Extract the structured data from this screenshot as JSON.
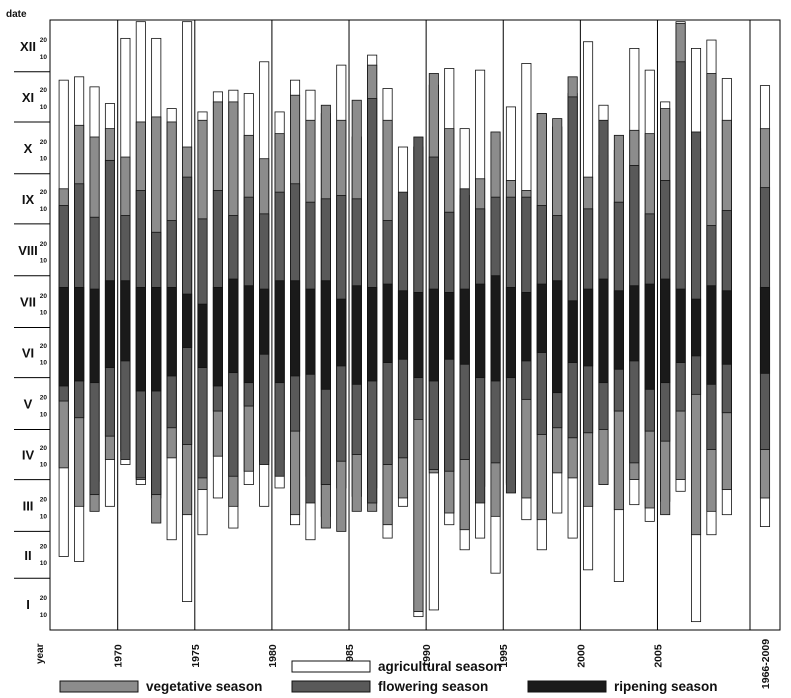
{
  "chart_data": {
    "type": "bar",
    "orientation": "vertical-range",
    "y_axis_title": "date",
    "x_axis_title": "year",
    "y_months": [
      "I",
      "II",
      "III",
      "IV",
      "V",
      "VI",
      "VII",
      "VIII",
      "IX",
      "X",
      "XI",
      "XII"
    ],
    "y_day_ticks": [
      "10",
      "20"
    ],
    "x_tick_labels": [
      {
        "label": "1970",
        "year": 1970
      },
      {
        "label": "1975",
        "year": 1975
      },
      {
        "label": "1980",
        "year": 1980
      },
      {
        "label": "1985",
        "year": 1985
      },
      {
        "label": "1990",
        "year": 1990
      },
      {
        "label": "1995",
        "year": 1995
      },
      {
        "label": "2000",
        "year": 2000
      },
      {
        "label": "2005",
        "year": 2005
      }
    ],
    "summary_label": "1966-2009",
    "range_units": "day of year",
    "season_order": [
      "agricultural",
      "vegetative",
      "flowering",
      "ripening"
    ],
    "legend": [
      {
        "key": "agricultural",
        "label": "agricultural season",
        "color": "#ffffff"
      },
      {
        "key": "vegetative",
        "label": "vegetative season",
        "color": "#8c8c8c"
      },
      {
        "key": "flowering",
        "label": "flowering season",
        "color": "#595959"
      },
      {
        "key": "ripening",
        "label": "ripening season",
        "color": "#1a1a1a"
      }
    ],
    "years": [
      1966,
      1967,
      1968,
      1969,
      1970,
      1971,
      1972,
      1973,
      1974,
      1975,
      1976,
      1977,
      1978,
      1979,
      1980,
      1981,
      1982,
      1983,
      1984,
      1985,
      1986,
      1987,
      1988,
      1989,
      1990,
      1991,
      1992,
      1993,
      1994,
      1995,
      1996,
      1997,
      1998,
      1999,
      2000,
      2001,
      2002,
      2003,
      2004,
      2005,
      2006,
      2007,
      2008,
      2009
    ],
    "series": [
      {
        "key": "agricultural",
        "ranges": [
          [
            45,
            330
          ],
          [
            42,
            332
          ],
          [
            90,
            326
          ],
          [
            75,
            316
          ],
          [
            100,
            355
          ],
          [
            88,
            365
          ],
          [
            80,
            355
          ],
          [
            55,
            313
          ],
          [
            18,
            365
          ],
          [
            58,
            311
          ],
          [
            80,
            323
          ],
          [
            62,
            324
          ],
          [
            88,
            322
          ],
          [
            75,
            341
          ],
          [
            86,
            311
          ],
          [
            64,
            330
          ],
          [
            55,
            324
          ],
          [
            69,
            310
          ],
          [
            86,
            339
          ],
          [
            81,
            296
          ],
          [
            86,
            345
          ],
          [
            56,
            325
          ],
          [
            75,
            290
          ],
          [
            9,
            290
          ],
          [
            13,
            327
          ],
          [
            64,
            337
          ],
          [
            49,
            301
          ],
          [
            56,
            336
          ],
          [
            35,
            293
          ],
          [
            89,
            314
          ],
          [
            67,
            340
          ],
          [
            49,
            310
          ],
          [
            71,
            302
          ],
          [
            56,
            322
          ],
          [
            37,
            353
          ],
          [
            90,
            315
          ],
          [
            30,
            288
          ],
          [
            76,
            349
          ],
          [
            66,
            336
          ],
          [
            78,
            317
          ],
          [
            84,
            365
          ],
          [
            6,
            349
          ],
          [
            58,
            354
          ],
          [
            70,
            331
          ]
        ]
      },
      {
        "key": "vegetative",
        "ranges": [
          [
            98,
            265
          ],
          [
            75,
            303
          ],
          [
            72,
            296
          ],
          [
            103,
            301
          ],
          [
            108,
            284
          ],
          [
            91,
            305
          ],
          [
            65,
            308
          ],
          [
            104,
            305
          ],
          [
            70,
            290
          ],
          [
            85,
            306
          ],
          [
            105,
            317
          ],
          [
            75,
            317
          ],
          [
            96,
            297
          ],
          [
            102,
            283
          ],
          [
            103,
            298
          ],
          [
            70,
            321
          ],
          [
            93,
            306
          ],
          [
            62,
            315
          ],
          [
            60,
            306
          ],
          [
            72,
            318
          ],
          [
            72,
            339
          ],
          [
            64,
            306
          ],
          [
            80,
            260
          ],
          [
            12,
            290
          ],
          [
            95,
            334
          ],
          [
            71,
            301
          ],
          [
            61,
            261
          ],
          [
            87,
            271
          ],
          [
            69,
            299
          ],
          [
            88,
            270
          ],
          [
            80,
            264
          ],
          [
            67,
            310
          ],
          [
            95,
            307
          ],
          [
            92,
            332
          ],
          [
            75,
            272
          ],
          [
            88,
            285
          ],
          [
            73,
            297
          ],
          [
            91,
            300
          ],
          [
            74,
            298
          ],
          [
            70,
            313
          ],
          [
            91,
            364
          ],
          [
            58,
            289
          ],
          [
            72,
            334
          ],
          [
            85,
            306
          ]
        ]
      },
      {
        "key": "flowering",
        "ranges": [
          [
            138,
            255
          ],
          [
            128,
            268
          ],
          [
            82,
            248
          ],
          [
            117,
            282
          ],
          [
            103,
            249
          ],
          [
            92,
            264
          ],
          [
            82,
            239
          ],
          [
            122,
            246
          ],
          [
            112,
            272
          ],
          [
            92,
            247
          ],
          [
            132,
            264
          ],
          [
            93,
            249
          ],
          [
            135,
            260
          ],
          [
            100,
            250
          ],
          [
            93,
            263
          ],
          [
            120,
            268
          ],
          [
            77,
            257
          ],
          [
            88,
            259
          ],
          [
            102,
            261
          ],
          [
            106,
            259
          ],
          [
            77,
            319
          ],
          [
            100,
            246
          ],
          [
            104,
            263
          ],
          [
            127,
            296
          ],
          [
            97,
            284
          ],
          [
            96,
            251
          ],
          [
            103,
            265
          ],
          [
            77,
            253
          ],
          [
            101,
            260
          ],
          [
            83,
            260
          ],
          [
            139,
            260
          ],
          [
            118,
            255
          ],
          [
            122,
            249
          ],
          [
            116,
            320
          ],
          [
            119,
            253
          ],
          [
            121,
            306
          ],
          [
            132,
            257
          ],
          [
            101,
            279
          ],
          [
            120,
            250
          ],
          [
            114,
            270
          ],
          [
            132,
            341
          ],
          [
            142,
            299
          ],
          [
            109,
            243
          ],
          [
            131,
            252
          ]
        ]
      },
      {
        "key": "ripening",
        "ranges": [
          [
            147,
            206
          ],
          [
            150,
            206
          ],
          [
            149,
            205
          ],
          [
            158,
            210
          ],
          [
            162,
            210
          ],
          [
            144,
            206
          ],
          [
            144,
            206
          ],
          [
            153,
            206
          ],
          [
            170,
            202
          ],
          [
            158,
            196
          ],
          [
            147,
            206
          ],
          [
            155,
            211
          ],
          [
            149,
            207
          ],
          [
            166,
            205
          ],
          [
            149,
            210
          ],
          [
            153,
            210
          ],
          [
            154,
            205
          ],
          [
            145,
            210
          ],
          [
            159,
            199
          ],
          [
            148,
            207
          ],
          [
            150,
            206
          ],
          [
            161,
            208
          ],
          [
            163,
            204
          ],
          [
            152,
            203
          ],
          [
            150,
            205
          ],
          [
            163,
            203
          ],
          [
            160,
            205
          ],
          [
            152,
            208
          ],
          [
            150,
            213
          ],
          [
            152,
            206
          ],
          [
            162,
            203
          ],
          [
            167,
            208
          ],
          [
            143,
            210
          ],
          [
            161,
            198
          ],
          [
            159,
            205
          ],
          [
            149,
            211
          ],
          [
            157,
            204
          ],
          [
            162,
            207
          ],
          [
            145,
            208
          ],
          [
            149,
            211
          ],
          [
            161,
            205
          ],
          [
            165,
            199
          ],
          [
            148,
            207
          ],
          [
            160,
            204
          ]
        ]
      }
    ]
  }
}
